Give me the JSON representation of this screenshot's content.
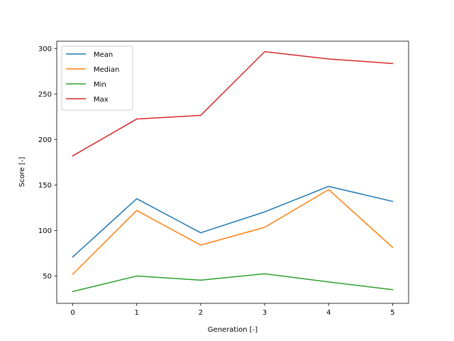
{
  "chart_data": {
    "type": "line",
    "title": "",
    "xlabel": "Generation [-]",
    "ylabel": "Score [-]",
    "x": [
      0,
      1,
      2,
      3,
      4,
      5
    ],
    "xticks": [
      0,
      1,
      2,
      3,
      4,
      5
    ],
    "xticks_text": [
      "0",
      "1",
      "2",
      "3",
      "4",
      "5"
    ],
    "yticks": [
      50,
      100,
      150,
      200,
      250,
      300
    ],
    "yticks_text": [
      "50",
      "100",
      "150",
      "200",
      "250",
      "300"
    ],
    "xlim": [
      -0.25,
      5.25
    ],
    "ylim": [
      20,
      308
    ],
    "grid": false,
    "legend_position": "top-left",
    "series": [
      {
        "name": "Mean",
        "color": "#1f77b4",
        "values": [
          71,
          135,
          97.5,
          120.5,
          148.5,
          132
        ]
      },
      {
        "name": "Median",
        "color": "#ff7f0e",
        "values": [
          52,
          122,
          84,
          103.5,
          145,
          81.5
        ]
      },
      {
        "name": "Min",
        "color": "#2ca02c",
        "values": [
          33,
          50,
          45.5,
          52.5,
          43.5,
          35
        ]
      },
      {
        "name": "Max",
        "color": "#d62728",
        "values": [
          182,
          222.5,
          226.5,
          296.5,
          288.5,
          283.5
        ]
      }
    ]
  }
}
